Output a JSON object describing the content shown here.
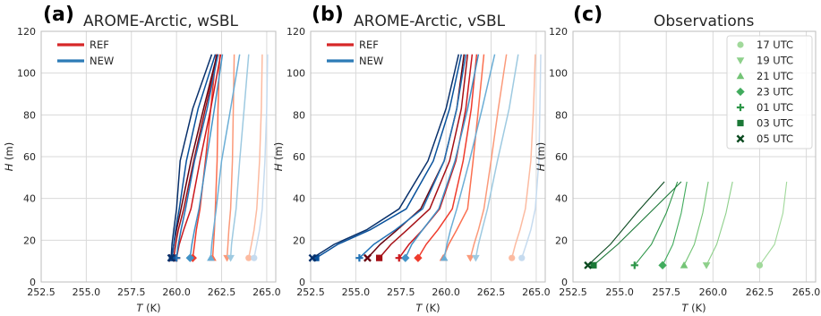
{
  "panels": [
    {
      "letter": "(a)",
      "title": "AROME-Arctic, wSBL",
      "xlabel_italic": "T",
      "xlabel_unit": " (K)",
      "ylabel_italic": "H",
      "ylabel_unit": " (m)",
      "legend": [
        {
          "label": "REF",
          "color": "#d62728"
        },
        {
          "label": "NEW",
          "color": "#2c7bb6"
        }
      ]
    },
    {
      "letter": "(b)",
      "title": "AROME-Arctic, vSBL",
      "xlabel_italic": "T",
      "xlabel_unit": " (K)",
      "ylabel_italic": "H",
      "ylabel_unit": " (m)",
      "legend": [
        {
          "label": "REF",
          "color": "#d62728"
        },
        {
          "label": "NEW",
          "color": "#2c7bb6"
        }
      ]
    },
    {
      "letter": "(c)",
      "title": "Observations",
      "xlabel_italic": "T",
      "xlabel_unit": " (K)",
      "ylabel_italic": "H",
      "ylabel_unit": " (m)",
      "legend": [
        {
          "label": "17 UTC",
          "marker": "circle",
          "color": "#a1d99b"
        },
        {
          "label": "19 UTC",
          "marker": "tri-down",
          "color": "#8ed08b"
        },
        {
          "label": "21 UTC",
          "marker": "tri-up",
          "color": "#74c476"
        },
        {
          "label": "23 UTC",
          "marker": "diamond",
          "color": "#41ab5d"
        },
        {
          "label": "01 UTC",
          "marker": "plus",
          "color": "#2d9648"
        },
        {
          "label": "03 UTC",
          "marker": "square",
          "color": "#1b7837"
        },
        {
          "label": "05 UTC",
          "marker": "x",
          "color": "#0b4a20"
        }
      ]
    }
  ],
  "chart_data": [
    {
      "type": "line",
      "panel": "(a)",
      "xlim": [
        252.5,
        265.5
      ],
      "ylim": [
        0,
        120
      ],
      "xticks": [
        "252.5",
        "255.0",
        "257.5",
        "260.0",
        "262.5",
        "265.0"
      ],
      "yticks": [
        "0",
        "20",
        "40",
        "60",
        "80",
        "100",
        "120"
      ],
      "grid": true,
      "heights": [
        11.5,
        18,
        25,
        35,
        58,
        83,
        109
      ],
      "series": [
        {
          "group": "REF",
          "marker": "circle",
          "color": "#fcbba1",
          "temps": [
            264.0,
            264.15,
            264.3,
            264.45,
            264.6,
            264.7,
            264.75
          ]
        },
        {
          "group": "REF",
          "marker": "tri-down",
          "color": "#fb9a7a",
          "temps": [
            262.8,
            262.85,
            262.9,
            263.0,
            263.1,
            263.15,
            263.2
          ]
        },
        {
          "group": "REF",
          "marker": "tri-up",
          "color": "#fb7050",
          "temps": [
            262.0,
            262.05,
            262.1,
            262.15,
            262.25,
            262.3,
            262.4
          ]
        },
        {
          "group": "REF",
          "marker": "diamond",
          "color": "#ef3b2c",
          "temps": [
            260.9,
            261.0,
            261.1,
            261.3,
            261.6,
            261.9,
            262.2
          ]
        },
        {
          "group": "REF",
          "marker": "plus",
          "color": "#cb181d",
          "temps": [
            260.0,
            260.15,
            260.4,
            260.8,
            261.3,
            261.9,
            262.45
          ]
        },
        {
          "group": "REF",
          "marker": "square",
          "color": "#a50f15",
          "temps": [
            259.85,
            259.95,
            260.1,
            260.4,
            260.95,
            261.6,
            262.3
          ]
        },
        {
          "group": "REF",
          "marker": "x",
          "color": "#67000d",
          "temps": [
            259.75,
            259.85,
            260.0,
            260.25,
            260.8,
            261.5,
            262.25
          ]
        },
        {
          "group": "NEW",
          "marker": "circle",
          "color": "#c6dbef",
          "temps": [
            264.3,
            264.45,
            264.6,
            264.75,
            264.9,
            265.0,
            265.05
          ]
        },
        {
          "group": "NEW",
          "marker": "tri-down",
          "color": "#9ecae1",
          "temps": [
            263.0,
            263.05,
            263.15,
            263.3,
            263.5,
            263.75,
            264.0
          ]
        },
        {
          "group": "NEW",
          "marker": "tri-up",
          "color": "#6baed6",
          "temps": [
            261.9,
            261.95,
            262.05,
            262.2,
            262.5,
            263.0,
            263.5
          ]
        },
        {
          "group": "NEW",
          "marker": "diamond",
          "color": "#4292c6",
          "temps": [
            260.75,
            260.85,
            261.0,
            261.25,
            261.65,
            262.1,
            262.55
          ]
        },
        {
          "group": "NEW",
          "marker": "plus",
          "color": "#2171b5",
          "temps": [
            260.0,
            260.1,
            260.25,
            260.5,
            261.0,
            261.7,
            262.3
          ]
        },
        {
          "group": "NEW",
          "marker": "square",
          "color": "#08519c",
          "temps": [
            259.75,
            259.85,
            259.95,
            260.15,
            260.55,
            261.2,
            262.15
          ]
        },
        {
          "group": "NEW",
          "marker": "x",
          "color": "#08306b",
          "temps": [
            259.7,
            259.75,
            259.85,
            260.0,
            260.2,
            260.9,
            261.95
          ]
        }
      ]
    },
    {
      "type": "line",
      "panel": "(b)",
      "xlim": [
        252.5,
        265.5
      ],
      "ylim": [
        0,
        120
      ],
      "xticks": [
        "252.5",
        "255.0",
        "257.5",
        "260.0",
        "262.5",
        "265.0"
      ],
      "yticks": [
        "0",
        "20",
        "40",
        "60",
        "80",
        "100",
        "120"
      ],
      "grid": true,
      "heights": [
        11.5,
        18,
        25,
        35,
        58,
        83,
        109
      ],
      "series": [
        {
          "group": "REF",
          "marker": "circle",
          "color": "#fcbba1",
          "temps": [
            263.65,
            263.85,
            264.1,
            264.4,
            264.7,
            264.85,
            264.95
          ]
        },
        {
          "group": "REF",
          "marker": "tri-down",
          "color": "#fb9a7a",
          "temps": [
            261.35,
            261.55,
            261.8,
            262.1,
            262.5,
            262.9,
            263.35
          ]
        },
        {
          "group": "REF",
          "marker": "tri-up",
          "color": "#fb7050",
          "temps": [
            259.85,
            260.15,
            260.6,
            261.2,
            261.5,
            261.8,
            262.1
          ]
        },
        {
          "group": "REF",
          "marker": "diamond",
          "color": "#ef3b2c",
          "temps": [
            258.45,
            258.9,
            259.55,
            260.35,
            260.95,
            261.4,
            261.7
          ]
        },
        {
          "group": "REF",
          "marker": "plus",
          "color": "#cb181d",
          "temps": [
            257.4,
            257.95,
            258.7,
            259.65,
            260.55,
            261.1,
            261.45
          ]
        },
        {
          "group": "REF",
          "marker": "square",
          "color": "#a50f15",
          "temps": [
            256.3,
            256.95,
            257.85,
            259.1,
            260.2,
            260.85,
            261.2
          ]
        },
        {
          "group": "REF",
          "marker": "x",
          "color": "#67000d",
          "temps": [
            255.65,
            256.35,
            257.3,
            258.6,
            259.9,
            260.6,
            261.0
          ]
        },
        {
          "group": "NEW",
          "marker": "circle",
          "color": "#c6dbef",
          "temps": [
            264.2,
            264.45,
            264.7,
            264.95,
            265.15,
            265.2,
            265.25
          ]
        },
        {
          "group": "NEW",
          "marker": "tri-down",
          "color": "#9ecae1",
          "temps": [
            261.65,
            261.8,
            262.0,
            262.3,
            262.85,
            263.5,
            264.0
          ]
        },
        {
          "group": "NEW",
          "marker": "tri-up",
          "color": "#6baed6",
          "temps": [
            259.9,
            260.05,
            260.25,
            260.6,
            261.3,
            262.0,
            262.7
          ]
        },
        {
          "group": "NEW",
          "marker": "diamond",
          "color": "#4292c6",
          "temps": [
            257.75,
            258.1,
            258.7,
            259.6,
            260.5,
            261.2,
            261.8
          ]
        },
        {
          "group": "NEW",
          "marker": "plus",
          "color": "#2171b5",
          "temps": [
            255.2,
            256.0,
            257.2,
            258.7,
            259.9,
            260.6,
            261.1
          ]
        },
        {
          "group": "NEW",
          "marker": "square",
          "color": "#08519c",
          "temps": [
            252.8,
            254.0,
            255.8,
            257.8,
            259.3,
            260.2,
            260.85
          ]
        },
        {
          "group": "NEW",
          "marker": "x",
          "color": "#08306b",
          "temps": [
            252.6,
            253.8,
            255.6,
            257.4,
            259.0,
            260.0,
            260.7
          ]
        }
      ]
    },
    {
      "type": "line",
      "panel": "(c)",
      "xlim": [
        252.5,
        265.5
      ],
      "ylim": [
        0,
        120
      ],
      "xticks": [
        "252.5",
        "255.0",
        "257.5",
        "260.0",
        "262.5",
        "265.0"
      ],
      "yticks": [
        "0",
        "20",
        "40",
        "60",
        "80",
        "100",
        "120"
      ],
      "grid": true,
      "heights": [
        8,
        18,
        33,
        48
      ],
      "series": [
        {
          "label": "17 UTC",
          "marker": "circle",
          "color": "#a1d99b",
          "temps": [
            262.5,
            263.3,
            263.75,
            263.95
          ]
        },
        {
          "label": "19 UTC",
          "marker": "tri-down",
          "color": "#8ed08b",
          "temps": [
            259.65,
            260.2,
            260.7,
            261.05
          ]
        },
        {
          "label": "21 UTC",
          "marker": "tri-up",
          "color": "#74c476",
          "temps": [
            258.45,
            259.0,
            259.45,
            259.75
          ]
        },
        {
          "label": "23 UTC",
          "marker": "diamond",
          "color": "#41ab5d",
          "temps": [
            257.3,
            257.85,
            258.3,
            258.6
          ]
        },
        {
          "label": "01 UTC",
          "marker": "plus",
          "color": "#2d9648",
          "temps": [
            255.8,
            256.7,
            257.5,
            258.1
          ]
        },
        {
          "label": "03 UTC",
          "marker": "square",
          "color": "#1b7837",
          "temps": [
            253.6,
            254.9,
            256.6,
            258.3
          ]
        },
        {
          "label": "05 UTC",
          "marker": "x",
          "color": "#0b4a20",
          "temps": [
            253.3,
            254.5,
            255.9,
            257.4
          ]
        }
      ]
    }
  ]
}
